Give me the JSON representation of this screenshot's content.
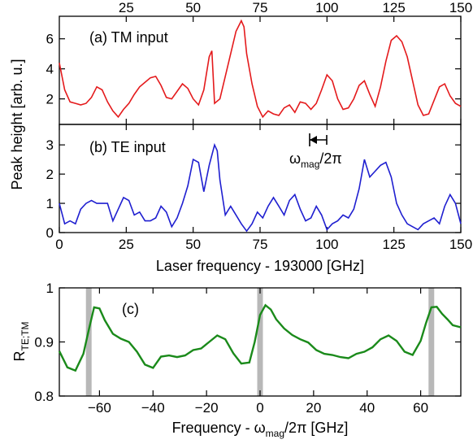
{
  "colors": {
    "tm": "#e41a1c",
    "te": "#1f1fd0",
    "ratio": "#1a8a1a",
    "marker": "#b8b8b8"
  },
  "texts": {
    "shared_ylabel": "Peak height [arb. u.]",
    "shared_xlabel": "Laser frequency - 193000 [GHz]",
    "omega_annotation": "ω",
    "omega_sub": "mag",
    "omega_rest": "/2π",
    "ratio_ylabel_main": "R",
    "ratio_ylabel_sub": "TE;TM",
    "ratio_xlabel_prefix": "Frequency - ω",
    "ratio_xlabel_sub": "mag",
    "ratio_xlabel_suffix": "/2π [GHz]"
  },
  "chart_data": [
    {
      "type": "line",
      "panel": "a",
      "label": "(a) TM input",
      "xlim": [
        0,
        150
      ],
      "ylim": [
        0.3,
        7.5
      ],
      "x_ticks_top": [
        25,
        50,
        75,
        100,
        125,
        150
      ],
      "y_ticks": [
        2,
        4,
        6
      ],
      "series": [
        {
          "x": [
            0,
            2,
            4,
            6,
            8,
            10,
            12,
            14,
            16,
            18,
            20,
            22,
            24,
            26,
            28,
            30,
            32,
            34,
            36,
            38,
            40,
            42,
            44,
            46,
            48,
            50,
            52,
            54,
            56,
            57,
            58,
            60,
            62,
            64,
            66,
            68,
            69,
            70,
            72,
            74,
            76,
            78,
            80,
            82,
            84,
            86,
            88,
            90,
            92,
            94,
            96,
            98,
            100,
            102,
            104,
            106,
            108,
            110,
            112,
            114,
            116,
            118,
            120,
            122,
            124,
            126,
            128,
            130,
            132,
            134,
            136,
            138,
            140,
            142,
            144,
            146,
            148,
            150
          ],
          "y": [
            4.4,
            2.6,
            1.8,
            1.7,
            1.6,
            1.7,
            2.1,
            2.8,
            2.6,
            1.8,
            1.2,
            0.8,
            1.3,
            1.7,
            2.3,
            2.8,
            3.1,
            3.4,
            3.5,
            2.9,
            2.1,
            2.0,
            2.5,
            3.0,
            2.7,
            2.0,
            1.6,
            2.6,
            4.8,
            5.2,
            1.7,
            2.0,
            3.5,
            5.0,
            6.5,
            7.2,
            6.8,
            5.0,
            3.0,
            1.5,
            0.8,
            1.2,
            1.0,
            0.9,
            1.4,
            1.6,
            1.1,
            1.8,
            1.7,
            1.3,
            1.7,
            2.6,
            3.6,
            3.2,
            2.0,
            1.3,
            1.4,
            2.0,
            2.9,
            3.2,
            2.3,
            1.5,
            2.8,
            4.5,
            5.9,
            6.2,
            5.8,
            4.8,
            3.2,
            1.6,
            0.9,
            1.0,
            1.9,
            2.8,
            3.0,
            2.2,
            1.7,
            1.5
          ]
        }
      ]
    },
    {
      "type": "line",
      "panel": "b",
      "label": "(b) TE input",
      "xlabel": "Laser frequency - 193000 [GHz]",
      "xlim": [
        0,
        150
      ],
      "ylim": [
        0,
        3.7
      ],
      "x_ticks": [
        0,
        25,
        50,
        75,
        100,
        125,
        150
      ],
      "y_ticks": [
        0,
        1,
        2,
        3
      ],
      "series": [
        {
          "x": [
            0,
            2,
            4,
            6,
            8,
            10,
            12,
            14,
            16,
            18,
            20,
            22,
            24,
            26,
            28,
            30,
            32,
            34,
            36,
            38,
            40,
            42,
            44,
            46,
            48,
            50,
            52,
            54,
            56,
            58,
            59,
            60,
            62,
            64,
            66,
            68,
            70,
            72,
            74,
            76,
            78,
            80,
            82,
            84,
            86,
            88,
            90,
            92,
            94,
            96,
            98,
            100,
            102,
            104,
            106,
            108,
            110,
            112,
            114,
            116,
            118,
            120,
            122,
            124,
            126,
            128,
            130,
            132,
            134,
            136,
            138,
            140,
            142,
            144,
            146,
            148,
            150
          ],
          "y": [
            1.0,
            0.3,
            0.4,
            0.3,
            0.8,
            1.0,
            1.1,
            1.0,
            1.0,
            1.0,
            0.4,
            0.8,
            1.2,
            1.1,
            0.6,
            0.7,
            0.4,
            0.4,
            0.5,
            0.9,
            0.7,
            0.2,
            0.5,
            1.0,
            1.6,
            2.5,
            2.4,
            1.4,
            2.3,
            3.0,
            2.8,
            1.8,
            0.6,
            0.9,
            0.6,
            0.3,
            0.05,
            0.3,
            0.7,
            0.5,
            0.9,
            1.2,
            0.9,
            0.6,
            1.1,
            1.3,
            0.8,
            0.4,
            0.5,
            0.9,
            0.6,
            0.1,
            0.3,
            0.4,
            0.6,
            0.5,
            0.8,
            1.5,
            2.5,
            1.9,
            2.1,
            2.3,
            2.4,
            1.9,
            1.0,
            0.6,
            0.3,
            0.2,
            0.1,
            0.3,
            0.4,
            0.5,
            0.3,
            0.9,
            1.3,
            1.0,
            0.3
          ]
        }
      ]
    },
    {
      "type": "line",
      "panel": "c",
      "label": "(c)",
      "xlim": [
        -75,
        75
      ],
      "ylim": [
        0.8,
        1.0
      ],
      "x_ticks": [
        -60,
        -40,
        -20,
        0,
        20,
        40,
        60
      ],
      "y_ticks": [
        0.8,
        0.9,
        1
      ],
      "y_tick_labels": [
        "0.8",
        "0.9",
        "1"
      ],
      "x_tick_labels": [
        "−60",
        "−40",
        "−20",
        "0",
        "20",
        "40",
        "60"
      ],
      "vertical_markers": [
        -64,
        0,
        64
      ],
      "series": [
        {
          "x": [
            -75,
            -72,
            -69,
            -66,
            -64,
            -62,
            -60,
            -58,
            -55,
            -52,
            -49,
            -46,
            -43,
            -40,
            -37,
            -34,
            -31,
            -28,
            -25,
            -22,
            -19,
            -16,
            -13,
            -10,
            -7,
            -4,
            -2,
            0,
            2,
            4,
            6,
            9,
            12,
            15,
            18,
            21,
            24,
            27,
            30,
            33,
            36,
            39,
            42,
            45,
            48,
            51,
            54,
            57,
            60,
            62,
            64,
            66,
            68,
            70,
            72,
            75
          ],
          "y": [
            0.883,
            0.853,
            0.847,
            0.878,
            0.922,
            0.964,
            0.962,
            0.94,
            0.915,
            0.906,
            0.9,
            0.882,
            0.858,
            0.852,
            0.873,
            0.875,
            0.872,
            0.875,
            0.885,
            0.888,
            0.9,
            0.912,
            0.905,
            0.879,
            0.86,
            0.862,
            0.9,
            0.95,
            0.968,
            0.96,
            0.942,
            0.925,
            0.913,
            0.905,
            0.899,
            0.885,
            0.878,
            0.876,
            0.872,
            0.87,
            0.878,
            0.882,
            0.89,
            0.905,
            0.912,
            0.902,
            0.882,
            0.876,
            0.902,
            0.935,
            0.964,
            0.965,
            0.952,
            0.942,
            0.931,
            0.927
          ]
        }
      ]
    }
  ]
}
